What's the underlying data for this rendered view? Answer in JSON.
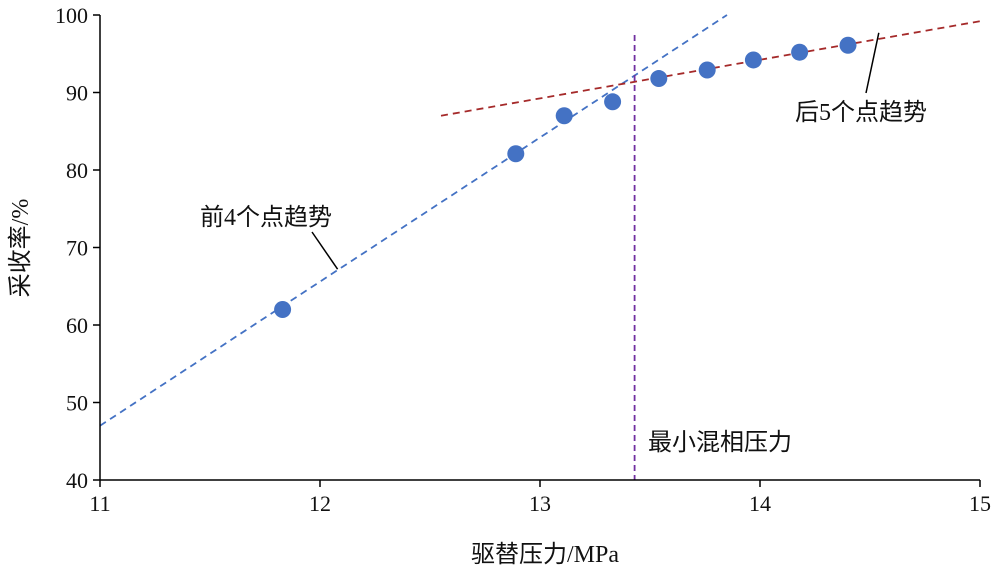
{
  "chart_data": {
    "type": "scatter",
    "title": "",
    "xlabel": "驱替压力/MPa",
    "ylabel": "采收率/%",
    "xlim": [
      11,
      15
    ],
    "ylim": [
      40,
      100
    ],
    "x_ticks": [
      {
        "value": 11,
        "label": "11"
      },
      {
        "value": 12,
        "label": "12"
      },
      {
        "value": 13,
        "label": "13"
      },
      {
        "value": 14,
        "label": "14"
      },
      {
        "value": 15,
        "label": "15"
      }
    ],
    "y_ticks": [
      {
        "value": 40,
        "label": "40"
      },
      {
        "value": 50,
        "label": "50"
      },
      {
        "value": 60,
        "label": "60"
      },
      {
        "value": 70,
        "label": "70"
      },
      {
        "value": 80,
        "label": "80"
      },
      {
        "value": 90,
        "label": "90"
      },
      {
        "value": 100,
        "label": "100"
      }
    ],
    "grid": false,
    "legend": "none",
    "series": [
      {
        "points": [
          {
            "x": 11.83,
            "y": 62.0
          },
          {
            "x": 12.89,
            "y": 82.1
          },
          {
            "x": 13.11,
            "y": 87.0
          },
          {
            "x": 13.33,
            "y": 88.8
          },
          {
            "x": 13.54,
            "y": 91.8
          },
          {
            "x": 13.76,
            "y": 92.9
          },
          {
            "x": 13.97,
            "y": 94.2
          },
          {
            "x": 14.18,
            "y": 95.2
          },
          {
            "x": 14.4,
            "y": 96.1
          }
        ],
        "color": "#4472C4"
      }
    ],
    "trendlines": [
      {
        "label": "前4个点趋势",
        "color": "#4472C4",
        "dash": "dashed",
        "from": {
          "x": 11.0,
          "y": 47.0
        },
        "to": {
          "x": 13.85,
          "y": 100.0
        }
      },
      {
        "label": "后5个点趋势",
        "color": "#A52A2A",
        "dash": "dashed",
        "from": {
          "x": 12.55,
          "y": 87.0
        },
        "to": {
          "x": 15.0,
          "y": 99.2
        }
      }
    ],
    "reference_lines": [
      {
        "orientation": "vertical",
        "x": 13.43,
        "label": "最小混相压力",
        "color": "#7030A0",
        "dash": "dashed"
      }
    ],
    "annotation_targets": [
      {
        "x": 12.08,
        "y": 67.2
      },
      {
        "x": 14.54,
        "y": 97.7
      }
    ]
  }
}
